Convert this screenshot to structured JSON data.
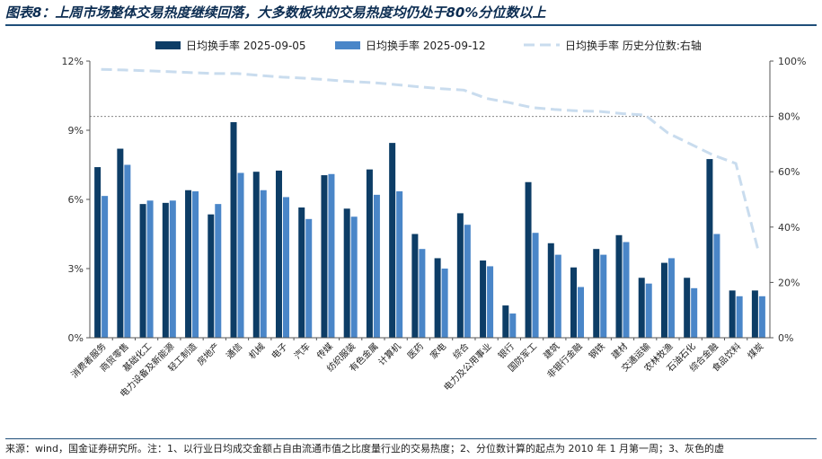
{
  "header": {
    "title": "图表8：上周市场整体交易热度继续回落，大多数板块的交易热度均仍处于80%分位数以上"
  },
  "footer": {
    "note": "来源：wind，国金证券研究所。注：1、以行业日均成交金额占自由流通市值之比度量行业的交易热度；2、分位数计算的起点为 2010 年 1 月第一周；3、灰色的虚"
  },
  "chart_data": {
    "type": "bar",
    "categories": [
      "消费者服务",
      "商贸零售",
      "基础化工",
      "电力设备及新能源",
      "轻工制造",
      "房地产",
      "通信",
      "机械",
      "电子",
      "汽车",
      "传媒",
      "纺织服装",
      "有色金属",
      "计算机",
      "医药",
      "家电",
      "综合",
      "电力及公用事业",
      "银行",
      "国防军工",
      "建筑",
      "非银行金融",
      "钢铁",
      "建材",
      "交通运输",
      "农林牧渔",
      "石油石化",
      "综合金融",
      "食品饮料",
      "煤炭"
    ],
    "series": [
      {
        "name": "日均换手率 2025-09-05",
        "axis": "left",
        "color": "#0d3d66",
        "values": [
          7.4,
          8.2,
          5.8,
          5.85,
          6.4,
          5.35,
          9.35,
          7.2,
          7.25,
          5.65,
          7.05,
          5.6,
          7.3,
          8.45,
          4.5,
          3.45,
          5.4,
          3.35,
          1.4,
          6.75,
          4.1,
          3.05,
          3.85,
          4.45,
          2.6,
          3.25,
          2.6,
          7.75,
          2.05,
          2.05
        ]
      },
      {
        "name": "日均换手率 2025-09-12",
        "axis": "left",
        "color": "#4a86c8",
        "values": [
          6.15,
          7.5,
          5.95,
          5.95,
          6.35,
          5.8,
          7.15,
          6.4,
          6.1,
          5.15,
          7.1,
          5.25,
          6.2,
          6.35,
          3.85,
          3.0,
          4.9,
          3.1,
          1.05,
          4.55,
          3.6,
          2.2,
          3.6,
          4.15,
          2.35,
          3.45,
          2.15,
          4.5,
          1.8,
          1.8
        ]
      },
      {
        "name": "日均换手率 历史分位数:右轴",
        "axis": "right",
        "type": "line",
        "color": "#c9dcee",
        "values": [
          97,
          96.8,
          96.5,
          96.2,
          95.8,
          95.5,
          95.5,
          94.8,
          94.2,
          93.8,
          93.2,
          92.6,
          92.2,
          91.5,
          90.7,
          90.0,
          89.5,
          86.5,
          85.0,
          83.2,
          82.5,
          82.0,
          81.8,
          81.0,
          80.5,
          74.0,
          70.0,
          66.0,
          63.0,
          31.0
        ]
      }
    ],
    "y_left": {
      "min": 0,
      "max": 12,
      "ticks": [
        "0%",
        "3%",
        "6%",
        "9%",
        "12%"
      ]
    },
    "y_right": {
      "min": 0,
      "max": 100,
      "ticks": [
        "0%",
        "20%",
        "40%",
        "60%",
        "80%",
        "100%"
      ]
    },
    "reference_line": {
      "axis": "right",
      "value": 80,
      "style": "dotted"
    },
    "legend": {
      "placement": "top"
    }
  }
}
